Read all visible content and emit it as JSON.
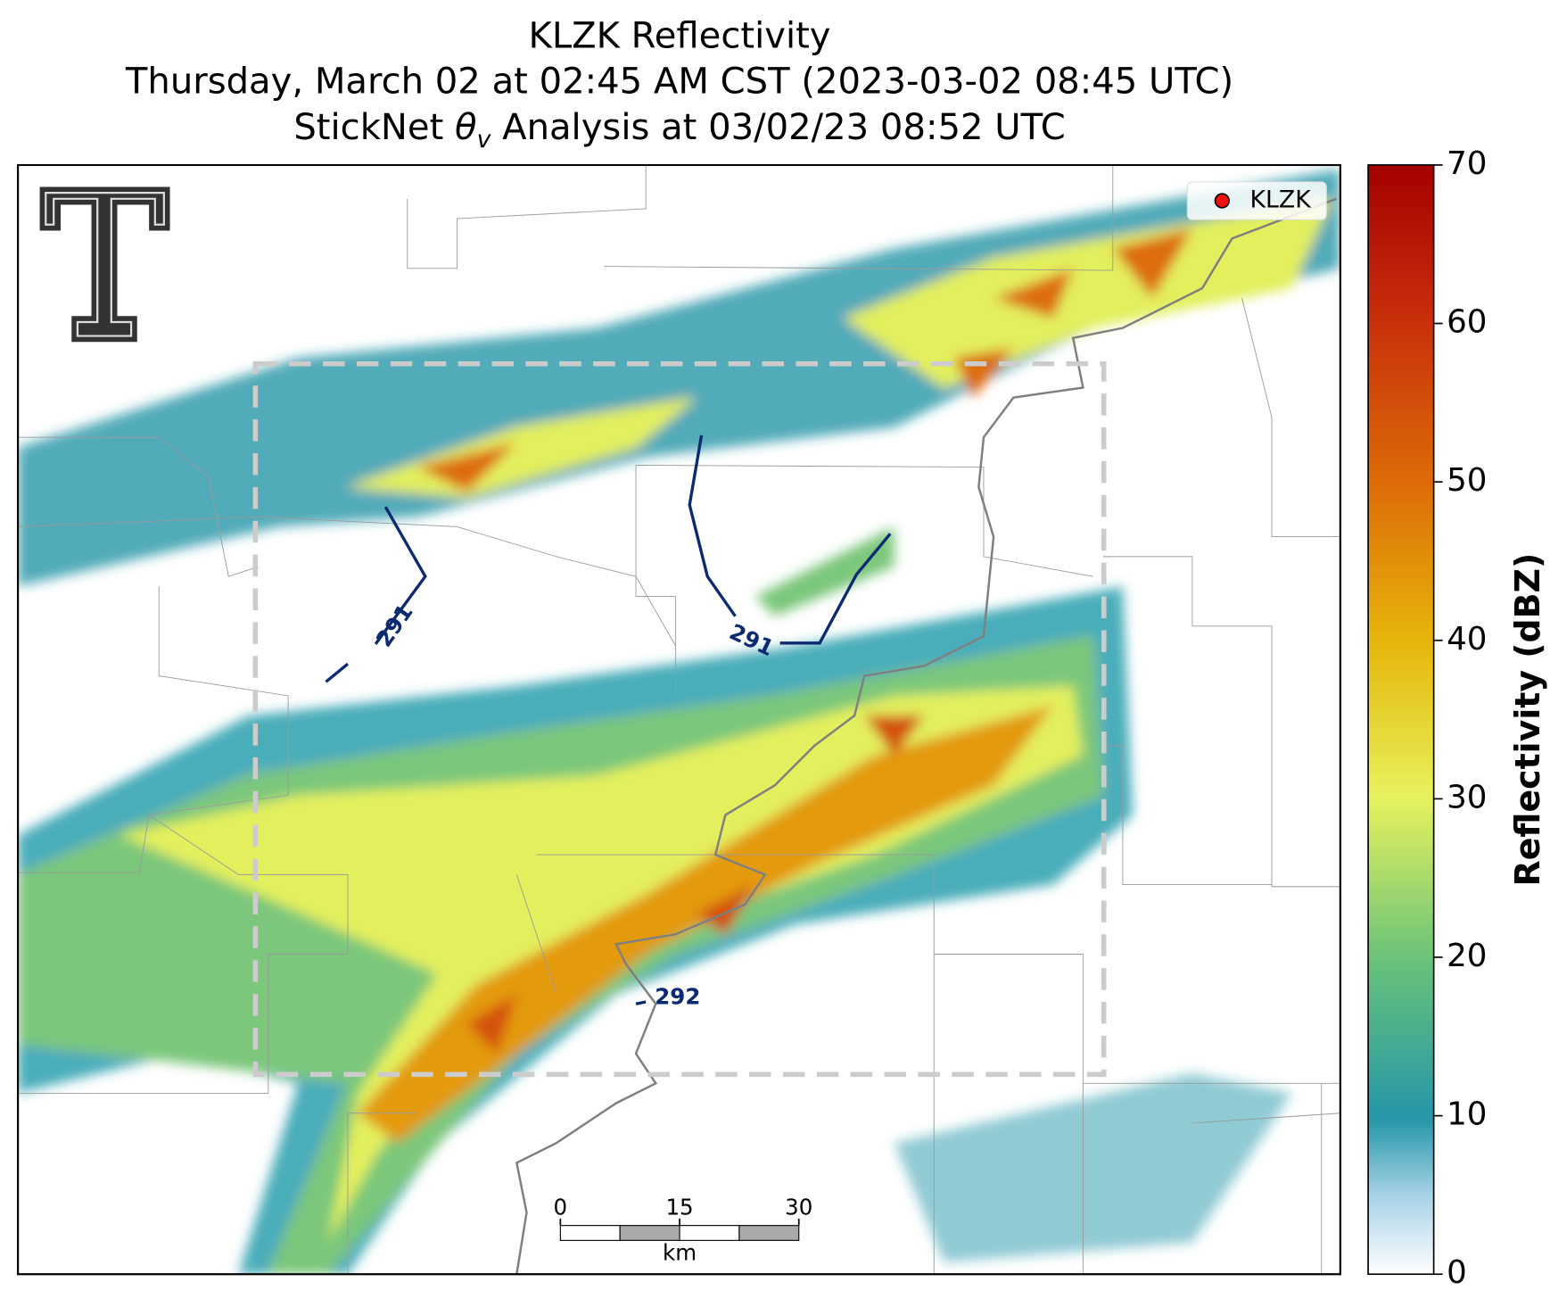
{
  "header": {
    "title": "KLZK Reflectivity",
    "subtitle": "Thursday, March 02 at 02:45 AM CST (2023-03-02 08:45 UTC)",
    "analysis": {
      "prefix": "StickNet",
      "symbol": "θ",
      "subscript": "v",
      "suffix": "Analysis at 03/02/23 08:52 UTC"
    }
  },
  "legend": {
    "label": "KLZK"
  },
  "contours": [
    {
      "label": "291"
    },
    {
      "label": "291"
    },
    {
      "label": "292"
    }
  ],
  "scalebar": {
    "ticks": [
      0,
      15,
      30
    ],
    "unit": "km"
  },
  "colorbar": {
    "label": "Reflectivity (dBZ)",
    "lim": [
      0,
      70
    ],
    "ticks": [
      0,
      10,
      20,
      30,
      40,
      50,
      60,
      70
    ]
  }
}
